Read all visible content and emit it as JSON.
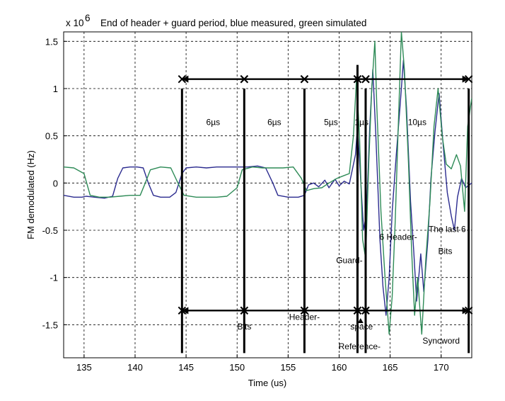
{
  "chart_data": {
    "type": "line",
    "title": "End of header + guard period, blue measured, green simulated",
    "y_exponent_label": "x 10",
    "y_exponent_power": "6",
    "xlabel": "Time (us)",
    "ylabel": "FM demodulated (Hz)",
    "xlim": [
      133,
      173
    ],
    "ylim": [
      -1.85,
      1.6
    ],
    "x_ticks": [
      135,
      140,
      145,
      150,
      155,
      160,
      165,
      170
    ],
    "y_ticks": [
      -1.5,
      -1,
      -0.5,
      0,
      0.5,
      1,
      1.5
    ],
    "x_tick_labels": [
      "135",
      "140",
      "145",
      "150",
      "155",
      "160",
      "165",
      "170"
    ],
    "y_tick_labels": [
      "-1.5",
      "-1",
      "-0.5",
      "0",
      "0.5",
      "1",
      "1.5"
    ],
    "grid": true,
    "series": [
      {
        "color": "#2b2b8f",
        "points": [
          [
            133,
            -0.13
          ],
          [
            134,
            -0.15
          ],
          [
            134.8,
            -0.15
          ],
          [
            135.2,
            -0.14
          ],
          [
            136,
            -0.15
          ],
          [
            137,
            -0.16
          ],
          [
            137.8,
            -0.14
          ],
          [
            138.3,
            0.05
          ],
          [
            138.8,
            0.16
          ],
          [
            139.5,
            0.17
          ],
          [
            140.2,
            0.17
          ],
          [
            140.8,
            0.16
          ],
          [
            141.3,
            0.0
          ],
          [
            141.8,
            -0.13
          ],
          [
            142.5,
            -0.15
          ],
          [
            143.4,
            -0.15
          ],
          [
            144,
            -0.1
          ],
          [
            144.6,
            0.1
          ],
          [
            145,
            0.16
          ],
          [
            146,
            0.17
          ],
          [
            147,
            0.16
          ],
          [
            148,
            0.17
          ],
          [
            149,
            0.17
          ],
          [
            150,
            0.17
          ],
          [
            151,
            0.17
          ],
          [
            152,
            0.18
          ],
          [
            152.8,
            0.16
          ],
          [
            153.5,
            0.0
          ],
          [
            154,
            -0.13
          ],
          [
            155,
            -0.15
          ],
          [
            156,
            -0.15
          ],
          [
            156.6,
            -0.13
          ],
          [
            157,
            -0.02
          ],
          [
            157.5,
            0.0
          ],
          [
            158,
            -0.04
          ],
          [
            158.6,
            0.03
          ],
          [
            159,
            -0.05
          ],
          [
            159.6,
            0.04
          ],
          [
            160,
            -0.03
          ],
          [
            160.5,
            0.02
          ],
          [
            161,
            -0.01
          ],
          [
            161.6,
            0.3
          ],
          [
            161.8,
            0.6
          ],
          [
            162.1,
            0.05
          ],
          [
            162.4,
            -0.5
          ],
          [
            162.7,
            -0.3
          ],
          [
            163,
            0.6
          ],
          [
            163.3,
            1.2
          ],
          [
            163.6,
            0.5
          ],
          [
            164,
            -0.6
          ],
          [
            164.3,
            -1.1
          ],
          [
            164.6,
            -1.4
          ],
          [
            164.9,
            -1.0
          ],
          [
            165.2,
            -0.3
          ],
          [
            165.6,
            0.3
          ],
          [
            166,
            0.85
          ],
          [
            166.3,
            1.3
          ],
          [
            166.6,
            0.8
          ],
          [
            167,
            -0.2
          ],
          [
            167.3,
            -0.7
          ],
          [
            167.6,
            -1.25
          ],
          [
            168,
            -0.75
          ],
          [
            168.3,
            -1.15
          ],
          [
            168.7,
            -0.6
          ],
          [
            169,
            0.05
          ],
          [
            169.4,
            0.55
          ],
          [
            169.8,
            0.95
          ],
          [
            170.2,
            0.4
          ],
          [
            170.6,
            -0.1
          ],
          [
            171,
            -0.35
          ],
          [
            171.3,
            -0.5
          ],
          [
            171.6,
            -0.15
          ],
          [
            172,
            0.05
          ],
          [
            172.4,
            -0.05
          ],
          [
            173,
            0.0
          ]
        ]
      },
      {
        "color": "#2e8b57",
        "points": [
          [
            133,
            0.17
          ],
          [
            134,
            0.16
          ],
          [
            135,
            0.1
          ],
          [
            135.6,
            -0.13
          ],
          [
            136.5,
            -0.15
          ],
          [
            137.5,
            -0.15
          ],
          [
            138.5,
            -0.14
          ],
          [
            139.5,
            -0.13
          ],
          [
            140.5,
            -0.13
          ],
          [
            141,
            0.0
          ],
          [
            141.5,
            0.14
          ],
          [
            142.5,
            0.17
          ],
          [
            143.5,
            0.16
          ],
          [
            144.2,
            0.0
          ],
          [
            144.8,
            -0.13
          ],
          [
            146,
            -0.15
          ],
          [
            147,
            -0.15
          ],
          [
            148,
            -0.15
          ],
          [
            149,
            -0.14
          ],
          [
            150,
            -0.05
          ],
          [
            150.5,
            0.14
          ],
          [
            151.5,
            0.17
          ],
          [
            152.5,
            0.16
          ],
          [
            153.5,
            0.16
          ],
          [
            154.5,
            0.16
          ],
          [
            155.5,
            0.17
          ],
          [
            156.3,
            0.05
          ],
          [
            156.8,
            -0.08
          ],
          [
            157.5,
            -0.06
          ],
          [
            158.3,
            -0.05
          ],
          [
            159,
            0.0
          ],
          [
            159.8,
            0.05
          ],
          [
            160.5,
            0.08
          ],
          [
            161,
            0.1
          ],
          [
            161.4,
            0.5
          ],
          [
            161.7,
            1.1
          ],
          [
            162,
            0.5
          ],
          [
            162.3,
            -0.6
          ],
          [
            162.6,
            -0.8
          ],
          [
            162.9,
            0.2
          ],
          [
            163.2,
            1.0
          ],
          [
            163.5,
            1.5
          ],
          [
            163.7,
            0.8
          ],
          [
            164.1,
            -0.3
          ],
          [
            164.5,
            -1.0
          ],
          [
            164.9,
            -1.6
          ],
          [
            165.2,
            -1.2
          ],
          [
            165.5,
            -0.4
          ],
          [
            165.8,
            0.6
          ],
          [
            166.1,
            1.6
          ],
          [
            166.4,
            1.2
          ],
          [
            166.8,
            0.2
          ],
          [
            167.1,
            -0.7
          ],
          [
            167.4,
            -1.4
          ],
          [
            167.7,
            -1.0
          ],
          [
            168.1,
            -1.6
          ],
          [
            168.5,
            -0.8
          ],
          [
            168.9,
            -0.2
          ],
          [
            169.3,
            0.6
          ],
          [
            169.7,
            1.0
          ],
          [
            170.1,
            0.5
          ],
          [
            170.5,
            0.2
          ],
          [
            171,
            0.15
          ],
          [
            171.5,
            0.3
          ],
          [
            171.9,
            0.18
          ],
          [
            172.3,
            -0.3
          ],
          [
            172.6,
            0.6
          ],
          [
            173,
            0.9
          ]
        ]
      }
    ],
    "dims_top": [
      {
        "label": "6µs",
        "x1": 144.6,
        "x2": 150.7
      },
      {
        "label": "6µs",
        "x1": 150.7,
        "x2": 156.6
      },
      {
        "label": "5µs",
        "x1": 156.6,
        "x2": 161.8
      },
      {
        "label": "1µs",
        "x1": 161.8,
        "x2": 162.6
      },
      {
        "label": "10µs",
        "x1": 162.6,
        "x2": 172.7
      }
    ],
    "dim_top_y": 1.1,
    "dims_bottom": [
      {
        "x1": 144.6,
        "x2": 150.7
      },
      {
        "x1": 150.7,
        "x2": 156.6
      },
      {
        "x1": 156.6,
        "x2": 161.8
      },
      {
        "x1": 161.8,
        "x2": 162.6
      },
      {
        "x1": 162.6,
        "x2": 172.7
      }
    ],
    "dim_bottom_y": -1.35,
    "dim_label_y": 0.65,
    "vlines": [
      144.6,
      150.7,
      156.6,
      161.8,
      162.6,
      172.7
    ],
    "vline_range": [
      -1.8,
      1.0
    ],
    "reference_marker": {
      "x": 161.8,
      "y_top": 1.25,
      "y_bottom": -1.35
    },
    "annotations": [
      {
        "text": "Bits",
        "x": 150.7,
        "y": -1.55
      },
      {
        "text": "Header-",
        "x": 156.6,
        "y": -1.45
      },
      {
        "text": "space",
        "x": 162.2,
        "y": -1.55
      },
      {
        "text": "Reference-",
        "x": 162.0,
        "y": -1.76
      },
      {
        "text": "Guard-",
        "x": 161.0,
        "y": -0.85
      },
      {
        "text": "6 Header-",
        "x": 165.8,
        "y": -0.6
      },
      {
        "text": "The last 6",
        "x": 170.6,
        "y": -0.52
      },
      {
        "text": "Bits",
        "x": 170.4,
        "y": -0.75
      },
      {
        "text": "Syncword",
        "x": 170.0,
        "y": -1.7
      }
    ]
  }
}
